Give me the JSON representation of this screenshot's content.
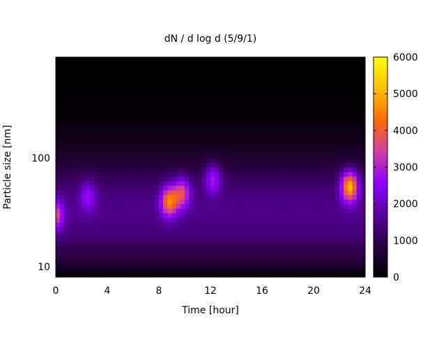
{
  "chart_data": {
    "type": "heatmap",
    "title": "dN / d log d (5/9/1)",
    "xlabel": "Time [hour]",
    "ylabel": "Particle size [nm]",
    "x_range": [
      0,
      24
    ],
    "x_ticks": [
      0,
      4,
      8,
      12,
      16,
      20,
      24
    ],
    "y_scale": "log",
    "y_range": [
      8,
      850
    ],
    "y_ticks": [
      {
        "value": 10,
        "label": "10"
      },
      {
        "value": 100,
        "label": "100"
      }
    ],
    "color_range": [
      0,
      6000
    ],
    "color_ticks": [
      0,
      1000,
      2000,
      3000,
      4000,
      5000,
      6000
    ],
    "colormap": [
      "#000000",
      "#2a0040",
      "#5a00a0",
      "#9000ff",
      "#d040a0",
      "#ff6a00",
      "#ffc000",
      "#ffff00"
    ],
    "background_level": 1500,
    "features": [
      {
        "time": 0.0,
        "size_nm": 30,
        "value": 3000
      },
      {
        "time": 2.5,
        "size_nm": 45,
        "value": 2200
      },
      {
        "time": 8.8,
        "size_nm": 40,
        "value": 4000
      },
      {
        "time": 9.8,
        "size_nm": 48,
        "value": 3200
      },
      {
        "time": 12.2,
        "size_nm": 65,
        "value": 2600
      },
      {
        "time": 22.8,
        "size_nm": 55,
        "value": 4800
      }
    ],
    "grid": false,
    "legend": "colorbar-right"
  }
}
